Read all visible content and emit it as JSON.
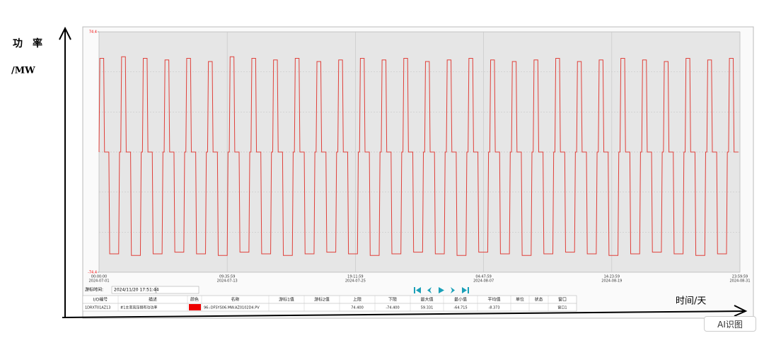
{
  "chart_data": {
    "type": "line",
    "ylabel": "功　率",
    "yunit": "/MW",
    "xlabel": "时间/天",
    "color": "#e0403a",
    "x": [
      0,
      0.08,
      0.45,
      0.53,
      0.95,
      1.03,
      1.9,
      1.98,
      2.1,
      2.18,
      2.55,
      2.63,
      3.05,
      3.13,
      4,
      4.08,
      4.2,
      4.28,
      4.65,
      4.73,
      5.15,
      5.23,
      6.1,
      6.18,
      6.3,
      6.38,
      6.75,
      6.83,
      7.25,
      7.33,
      8.2,
      8.28,
      8.4,
      8.48,
      8.85,
      8.93,
      9.35,
      9.43,
      10.3,
      10.38,
      10.5,
      10.58,
      10.95,
      11.03,
      11.45,
      11.53,
      12.4,
      12.48,
      12.6,
      12.68,
      13.05,
      13.13,
      13.55,
      13.63,
      14.5,
      14.58,
      14.7,
      14.78,
      15.15,
      15.23,
      15.65,
      15.73,
      16.6,
      16.68,
      16.8,
      16.88,
      17.25,
      17.33,
      17.75,
      17.83,
      18.7,
      18.78,
      18.9,
      18.98,
      19.35,
      19.43,
      19.85,
      19.93,
      20.8,
      20.88,
      21,
      21.08,
      21.45,
      21.53,
      21.95,
      22.03,
      22.9,
      22.98,
      23.1,
      23.18,
      23.55,
      23.63,
      24.05,
      24.13,
      25,
      25.08,
      25.2,
      25.28,
      25.65,
      25.73,
      26.15,
      26.23,
      27.1,
      27.18,
      27.3,
      27.38,
      27.75,
      27.83,
      28.25,
      28.33,
      29.2,
      29.28,
      29.4,
      29.48,
      29.85,
      29.93,
      30.35,
      30.43,
      31.3,
      31.38,
      31.5,
      31.58,
      31.95,
      32.03,
      32.45,
      32.53,
      33.4,
      33.48,
      33.6,
      33.68,
      34.05,
      34.13,
      34.55,
      34.63,
      35.5,
      35.58,
      35.7,
      35.78,
      36.15,
      36.23,
      36.65,
      36.73,
      37.6,
      37.68,
      37.8,
      37.88,
      38.25,
      38.33,
      38.75,
      38.83,
      39.7,
      39.78,
      39.9,
      39.98,
      40.35,
      40.43,
      40.85,
      40.93,
      41.8,
      41.88,
      42,
      42.08,
      42.45,
      42.53,
      42.95,
      43.03,
      43.9,
      43.98,
      44.1,
      44.18,
      44.55,
      44.63,
      45.05,
      45.13,
      46,
      46.08,
      46.2,
      46.28,
      46.65,
      46.73,
      47.15,
      47.23,
      48.1,
      48.18,
      48.3,
      48.38,
      48.75,
      48.83,
      49.25,
      49.33,
      50.2,
      50.28,
      50.4,
      50.48,
      50.85,
      50.93,
      51.35,
      51.43,
      52.3,
      52.38,
      52.5,
      52.58,
      52.95,
      53.03,
      53.45,
      53.53,
      54.4,
      54.48,
      54.6,
      54.68,
      55.05,
      55.13,
      55.55,
      55.63,
      56.5,
      56.58,
      56.7,
      56.78,
      57.15,
      57.23,
      57.65,
      57.73,
      58.6,
      58.68,
      58.8,
      58.88,
      59.25,
      59.33,
      59.75,
      59.83,
      60.7,
      60.78,
      60.9,
      60.98,
      61.35,
      61.43,
      61.85
    ],
    "values": [
      0,
      58,
      58,
      0,
      0,
      -63,
      -63,
      0,
      0,
      59,
      59,
      0,
      0,
      -64,
      -64,
      0,
      0,
      58,
      58,
      0,
      0,
      -63,
      -63,
      0,
      0,
      57,
      57,
      0,
      0,
      -62,
      -62,
      0,
      0,
      58,
      58,
      0,
      0,
      -63,
      -63,
      0,
      0,
      56,
      56,
      0,
      0,
      -64,
      -64,
      0,
      0,
      59,
      59,
      0,
      0,
      -62,
      -62,
      0,
      0,
      58,
      58,
      0,
      0,
      -63,
      -63,
      0,
      0,
      57,
      57,
      0,
      0,
      -64,
      -64,
      0,
      0,
      58,
      58,
      0,
      0,
      -63,
      -63,
      0,
      0,
      56,
      56,
      0,
      0,
      -62,
      -62,
      0,
      0,
      57,
      57,
      0,
      0,
      -63,
      -63,
      0,
      0,
      58,
      58,
      0,
      0,
      -64,
      -64,
      0,
      0,
      57,
      57,
      0,
      0,
      -63,
      -63,
      0,
      0,
      58,
      58,
      0,
      0,
      -62,
      -62,
      0,
      0,
      56,
      56,
      0,
      0,
      -63,
      -63,
      0,
      0,
      57,
      57,
      0,
      0,
      -64,
      -64,
      0,
      0,
      58,
      58,
      0,
      0,
      -62,
      -62,
      0,
      0,
      57,
      57,
      0,
      0,
      -63,
      -63,
      0,
      0,
      56,
      56,
      0,
      0,
      -64,
      -64,
      0,
      0,
      57,
      57,
      0,
      0,
      -63,
      -63,
      0,
      0,
      58,
      58,
      0,
      0,
      -62,
      -62,
      0,
      0,
      56,
      56,
      0,
      0,
      -63,
      -63,
      0,
      0,
      57,
      57,
      0,
      0,
      -64,
      -64,
      0,
      0,
      58,
      58,
      0,
      0,
      -63,
      -63,
      0,
      0,
      57,
      57,
      0,
      0,
      -62,
      -62,
      0,
      0,
      56,
      56,
      0,
      0,
      -63,
      -63,
      0,
      0,
      58,
      58,
      0,
      0,
      -64,
      -64,
      0,
      0,
      57,
      57,
      0,
      0,
      -63,
      -63,
      0,
      0,
      58,
      58,
      0,
      0
    ],
    "xlim": [
      0,
      62
    ],
    "xticks": [
      {
        "value": 0,
        "label": "00:00:00",
        "date": "2024-07-01"
      },
      {
        "value": 12.4,
        "label": "09:35:59",
        "date": "2024-07-13"
      },
      {
        "value": 24.8,
        "label": "19:11:59",
        "date": "2024-07-25"
      },
      {
        "value": 37.2,
        "label": "04:47:59",
        "date": "2024-08-07"
      },
      {
        "value": 49.6,
        "label": "14:23:59",
        "date": "2024-08-19"
      },
      {
        "value": 62,
        "label": "23:59:59",
        "date": "2024-08-31"
      }
    ],
    "ylim": [
      -74.4,
      74.4
    ],
    "yticks": [
      -74.4,
      74.4
    ],
    "grid": true
  },
  "cursor": {
    "label": "游标时间:",
    "time": "2024/11/20 17:51:44"
  },
  "table": {
    "headers": [
      "I/O编号",
      "描述",
      "颜色",
      "名称",
      "游标1值",
      "游标2值",
      "上限",
      "下限",
      "最大值",
      "最小值",
      "平均值",
      "单位",
      "状态",
      "窗口"
    ],
    "rows": [
      [
        "1DRXT01AZ13",
        "#1主变高压侧有功功率",
        null,
        "96::DFSYS06.MW.AZ0102D4.PV",
        null,
        null,
        "74.400",
        "-74.400",
        "59.331",
        "-64.715",
        "-8.373",
        null,
        null,
        "窗口1"
      ]
    ]
  },
  "ai_button": "AI识图"
}
